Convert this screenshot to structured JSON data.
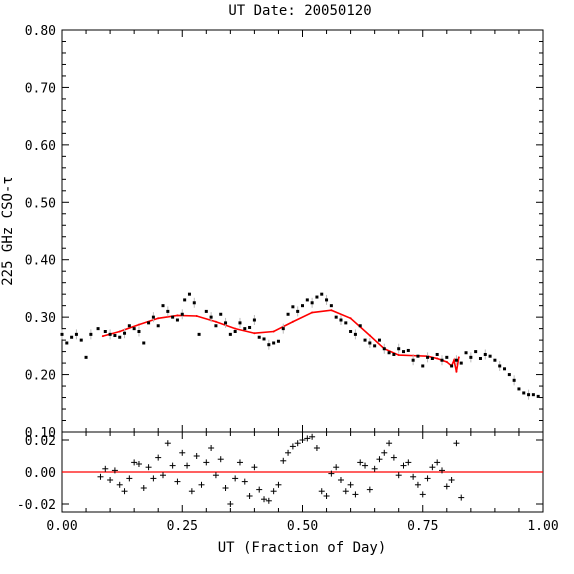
{
  "chart_data": [
    {
      "type": "scatter",
      "title": "UT Date: 20050120",
      "xlabel": "",
      "ylabel": "225 GHz CSO-τ",
      "xlim": [
        0.0,
        1.0
      ],
      "ylim": [
        0.1,
        0.8
      ],
      "y_ticks": [
        "0.10",
        "0.20",
        "0.30",
        "0.40",
        "0.50",
        "0.60",
        "0.70",
        "0.80"
      ],
      "series": [
        {
          "kind": "measurements",
          "color": "#000000",
          "points": [
            [
              0.0,
              0.27
            ],
            [
              0.01,
              0.255
            ],
            [
              0.02,
              0.265
            ],
            [
              0.03,
              0.27
            ],
            [
              0.04,
              0.26
            ],
            [
              0.05,
              0.23
            ],
            [
              0.06,
              0.27
            ],
            [
              0.075,
              0.28
            ],
            [
              0.09,
              0.275
            ],
            [
              0.1,
              0.27
            ],
            [
              0.11,
              0.268
            ],
            [
              0.12,
              0.265
            ],
            [
              0.13,
              0.272
            ],
            [
              0.14,
              0.285
            ],
            [
              0.15,
              0.28
            ],
            [
              0.16,
              0.275
            ],
            [
              0.17,
              0.255
            ],
            [
              0.18,
              0.29
            ],
            [
              0.19,
              0.3
            ],
            [
              0.2,
              0.285
            ],
            [
              0.21,
              0.32
            ],
            [
              0.22,
              0.31
            ],
            [
              0.23,
              0.3
            ],
            [
              0.24,
              0.295
            ],
            [
              0.25,
              0.305
            ],
            [
              0.255,
              0.33
            ],
            [
              0.265,
              0.34
            ],
            [
              0.275,
              0.325
            ],
            [
              0.285,
              0.27
            ],
            [
              0.3,
              0.31
            ],
            [
              0.31,
              0.3
            ],
            [
              0.32,
              0.285
            ],
            [
              0.33,
              0.305
            ],
            [
              0.34,
              0.29
            ],
            [
              0.35,
              0.27
            ],
            [
              0.36,
              0.275
            ],
            [
              0.37,
              0.29
            ],
            [
              0.38,
              0.28
            ],
            [
              0.39,
              0.282
            ],
            [
              0.4,
              0.295
            ],
            [
              0.41,
              0.265
            ],
            [
              0.42,
              0.262
            ],
            [
              0.43,
              0.252
            ],
            [
              0.44,
              0.255
            ],
            [
              0.45,
              0.258
            ],
            [
              0.46,
              0.28
            ],
            [
              0.47,
              0.305
            ],
            [
              0.48,
              0.318
            ],
            [
              0.49,
              0.31
            ],
            [
              0.5,
              0.32
            ],
            [
              0.51,
              0.33
            ],
            [
              0.52,
              0.325
            ],
            [
              0.53,
              0.335
            ],
            [
              0.54,
              0.34
            ],
            [
              0.55,
              0.33
            ],
            [
              0.56,
              0.32
            ],
            [
              0.57,
              0.3
            ],
            [
              0.58,
              0.295
            ],
            [
              0.59,
              0.29
            ],
            [
              0.6,
              0.275
            ],
            [
              0.61,
              0.27
            ],
            [
              0.62,
              0.285
            ],
            [
              0.63,
              0.26
            ],
            [
              0.64,
              0.255
            ],
            [
              0.65,
              0.25
            ],
            [
              0.66,
              0.26
            ],
            [
              0.67,
              0.245
            ],
            [
              0.68,
              0.238
            ],
            [
              0.69,
              0.235
            ],
            [
              0.7,
              0.245
            ],
            [
              0.71,
              0.24
            ],
            [
              0.72,
              0.242
            ],
            [
              0.73,
              0.225
            ],
            [
              0.74,
              0.232
            ],
            [
              0.75,
              0.215
            ],
            [
              0.76,
              0.23
            ],
            [
              0.77,
              0.228
            ],
            [
              0.78,
              0.235
            ],
            [
              0.79,
              0.225
            ],
            [
              0.8,
              0.23
            ],
            [
              0.81,
              0.215
            ],
            [
              0.82,
              0.225
            ],
            [
              0.83,
              0.22
            ],
            [
              0.84,
              0.238
            ],
            [
              0.85,
              0.23
            ],
            [
              0.86,
              0.24
            ],
            [
              0.87,
              0.228
            ],
            [
              0.88,
              0.235
            ],
            [
              0.89,
              0.232
            ],
            [
              0.9,
              0.225
            ],
            [
              0.91,
              0.215
            ],
            [
              0.92,
              0.21
            ],
            [
              0.93,
              0.2
            ],
            [
              0.94,
              0.19
            ],
            [
              0.95,
              0.175
            ],
            [
              0.96,
              0.168
            ],
            [
              0.97,
              0.165
            ],
            [
              0.98,
              0.165
            ],
            [
              0.99,
              0.162
            ]
          ]
        },
        {
          "kind": "fit",
          "color": "#ff0000",
          "points": [
            [
              0.085,
              0.267
            ],
            [
              0.12,
              0.275
            ],
            [
              0.16,
              0.287
            ],
            [
              0.2,
              0.298
            ],
            [
              0.24,
              0.303
            ],
            [
              0.28,
              0.302
            ],
            [
              0.32,
              0.292
            ],
            [
              0.36,
              0.28
            ],
            [
              0.4,
              0.272
            ],
            [
              0.44,
              0.275
            ],
            [
              0.48,
              0.292
            ],
            [
              0.52,
              0.308
            ],
            [
              0.56,
              0.312
            ],
            [
              0.6,
              0.298
            ],
            [
              0.64,
              0.268
            ],
            [
              0.67,
              0.245
            ],
            [
              0.7,
              0.234
            ],
            [
              0.73,
              0.233
            ],
            [
              0.76,
              0.232
            ],
            [
              0.78,
              0.228
            ],
            [
              0.8,
              0.222
            ],
            [
              0.81,
              0.215
            ],
            [
              0.815,
              0.225
            ],
            [
              0.82,
              0.205
            ],
            [
              0.825,
              0.23
            ]
          ]
        }
      ]
    },
    {
      "type": "scatter",
      "title": "",
      "xlabel": "UT (Fraction of Day)",
      "ylabel": "",
      "xlim": [
        0.0,
        1.0
      ],
      "ylim": [
        -0.025,
        0.025
      ],
      "x_ticks": [
        "0.00",
        "0.25",
        "0.50",
        "0.75",
        "1.00"
      ],
      "y_ticks": [
        "-0.02",
        "0.00",
        "0.02"
      ],
      "series": [
        {
          "kind": "residuals",
          "color": "#000000",
          "points": [
            [
              0.08,
              -0.003
            ],
            [
              0.09,
              0.002
            ],
            [
              0.1,
              -0.005
            ],
            [
              0.11,
              0.001
            ],
            [
              0.12,
              -0.008
            ],
            [
              0.13,
              -0.012
            ],
            [
              0.14,
              -0.004
            ],
            [
              0.15,
              0.006
            ],
            [
              0.16,
              0.005
            ],
            [
              0.17,
              -0.01
            ],
            [
              0.18,
              0.003
            ],
            [
              0.19,
              -0.004
            ],
            [
              0.2,
              0.009
            ],
            [
              0.21,
              -0.002
            ],
            [
              0.22,
              0.018
            ],
            [
              0.23,
              0.004
            ],
            [
              0.24,
              -0.006
            ],
            [
              0.25,
              0.012
            ],
            [
              0.26,
              0.004
            ],
            [
              0.27,
              -0.012
            ],
            [
              0.28,
              0.01
            ],
            [
              0.29,
              -0.008
            ],
            [
              0.3,
              0.006
            ],
            [
              0.31,
              0.015
            ],
            [
              0.32,
              -0.002
            ],
            [
              0.33,
              0.008
            ],
            [
              0.34,
              -0.01
            ],
            [
              0.35,
              -0.02
            ],
            [
              0.36,
              -0.004
            ],
            [
              0.37,
              0.006
            ],
            [
              0.38,
              -0.006
            ],
            [
              0.39,
              -0.015
            ],
            [
              0.4,
              0.003
            ],
            [
              0.41,
              -0.011
            ],
            [
              0.42,
              -0.017
            ],
            [
              0.43,
              -0.018
            ],
            [
              0.44,
              -0.012
            ],
            [
              0.45,
              -0.008
            ],
            [
              0.46,
              0.007
            ],
            [
              0.47,
              0.012
            ],
            [
              0.48,
              0.016
            ],
            [
              0.49,
              0.018
            ],
            [
              0.5,
              0.02
            ],
            [
              0.51,
              0.021
            ],
            [
              0.52,
              0.022
            ],
            [
              0.53,
              0.015
            ],
            [
              0.54,
              -0.012
            ],
            [
              0.55,
              -0.015
            ],
            [
              0.56,
              -0.001
            ],
            [
              0.57,
              0.003
            ],
            [
              0.58,
              -0.005
            ],
            [
              0.59,
              -0.012
            ],
            [
              0.6,
              -0.008
            ],
            [
              0.61,
              -0.014
            ],
            [
              0.62,
              0.006
            ],
            [
              0.63,
              0.004
            ],
            [
              0.64,
              -0.011
            ],
            [
              0.65,
              0.002
            ],
            [
              0.66,
              0.008
            ],
            [
              0.67,
              0.012
            ],
            [
              0.68,
              0.018
            ],
            [
              0.69,
              0.009
            ],
            [
              0.7,
              -0.002
            ],
            [
              0.71,
              0.004
            ],
            [
              0.72,
              0.006
            ],
            [
              0.73,
              -0.003
            ],
            [
              0.74,
              -0.008
            ],
            [
              0.75,
              -0.014
            ],
            [
              0.76,
              -0.004
            ],
            [
              0.77,
              0.003
            ],
            [
              0.78,
              0.006
            ],
            [
              0.79,
              0.001
            ],
            [
              0.8,
              -0.009
            ],
            [
              0.81,
              -0.005
            ],
            [
              0.82,
              0.018
            ],
            [
              0.83,
              -0.016
            ]
          ]
        },
        {
          "kind": "zero-line",
          "color": "#ff0000",
          "points": [
            [
              0.0,
              0.0
            ],
            [
              1.0,
              0.0
            ]
          ]
        }
      ]
    }
  ]
}
